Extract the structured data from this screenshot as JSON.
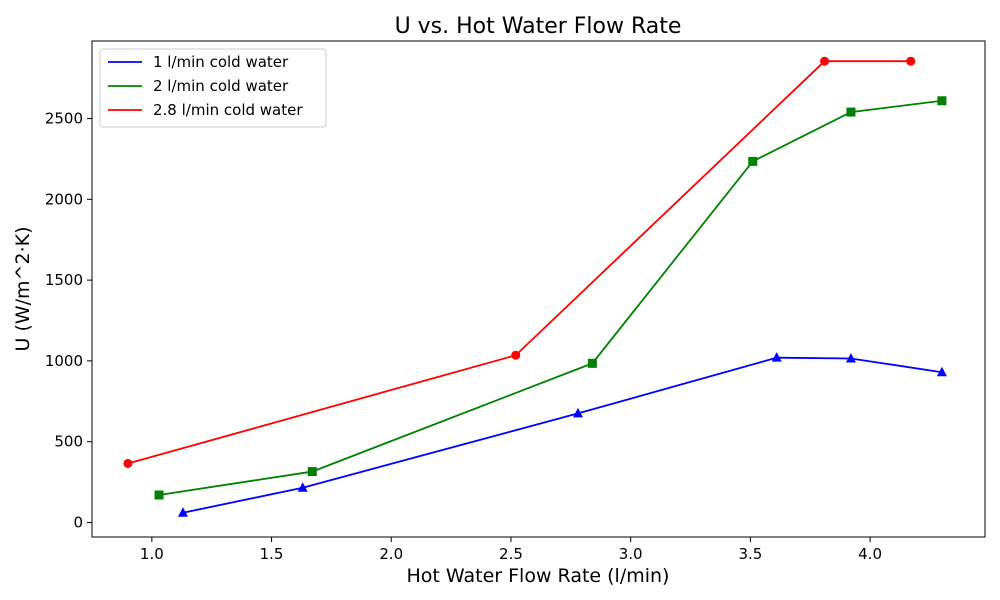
{
  "chart_data": {
    "type": "line",
    "title": "U vs. Hot Water Flow Rate",
    "xlabel": "Hot Water Flow Rate (l/min)",
    "ylabel": "U (W/m^2·K)",
    "xlim": [
      0.75,
      4.48
    ],
    "ylim": [
      -90,
      2980
    ],
    "xticks": [
      1.0,
      1.5,
      2.0,
      2.5,
      3.0,
      3.5,
      4.0
    ],
    "xtick_labels": [
      "1.0",
      "1.5",
      "2.0",
      "2.5",
      "3.0",
      "3.5",
      "4.0"
    ],
    "yticks": [
      0,
      500,
      1000,
      1500,
      2000,
      2500
    ],
    "ytick_labels": [
      "0",
      "500",
      "1000",
      "1500",
      "2000",
      "2500"
    ],
    "grid": false,
    "legend_position": "top-left",
    "series": [
      {
        "name": "1 l/min cold water",
        "color": "#0000ff",
        "marker": "triangle",
        "x": [
          1.13,
          1.63,
          2.78,
          3.61,
          3.92,
          4.3
        ],
        "y": [
          60,
          215,
          675,
          1020,
          1015,
          930
        ]
      },
      {
        "name": "2 l/min cold water",
        "color": "#008000",
        "marker": "square",
        "x": [
          1.03,
          1.67,
          2.84,
          3.51,
          3.92,
          4.3
        ],
        "y": [
          170,
          315,
          985,
          2235,
          2540,
          2610
        ]
      },
      {
        "name": "2.8 l/min cold water",
        "color": "#ff0000",
        "marker": "circle",
        "x": [
          0.9,
          2.52,
          3.81,
          4.17
        ],
        "y": [
          365,
          1035,
          2855,
          2855
        ]
      }
    ]
  }
}
